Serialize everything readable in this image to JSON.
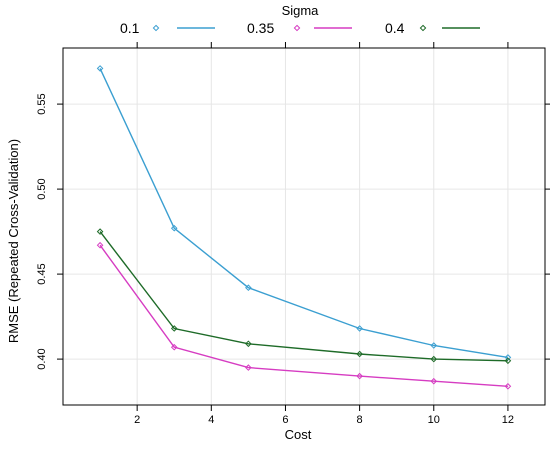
{
  "chart_data": {
    "type": "line",
    "title": "",
    "legend_title": "Sigma",
    "legend_placement": "top",
    "xlabel": "Cost",
    "ylabel": "RMSE (Repeated Cross-Validation)",
    "x": [
      1,
      3,
      5,
      8,
      10,
      12
    ],
    "xlim": [
      0,
      13
    ],
    "ylim": [
      0.373,
      0.583
    ],
    "x_ticks": [
      2,
      4,
      6,
      8,
      10,
      12
    ],
    "y_ticks": [
      0.4,
      0.45,
      0.5,
      0.55
    ],
    "x_tick_labels": [
      "2",
      "4",
      "6",
      "8",
      "10",
      "12"
    ],
    "y_tick_labels": [
      "0.40",
      "0.45",
      "0.50",
      "0.55"
    ],
    "grid": true,
    "series": [
      {
        "name": "0.1",
        "color": "#3b9fd1",
        "values": [
          0.571,
          0.477,
          0.442,
          0.418,
          0.408,
          0.401
        ]
      },
      {
        "name": "0.35",
        "color": "#d63cc2",
        "values": [
          0.467,
          0.407,
          0.395,
          0.39,
          0.387,
          0.384
        ]
      },
      {
        "name": "0.4",
        "color": "#1e6b28",
        "values": [
          0.475,
          0.418,
          0.409,
          0.403,
          0.4,
          0.399
        ]
      }
    ]
  }
}
